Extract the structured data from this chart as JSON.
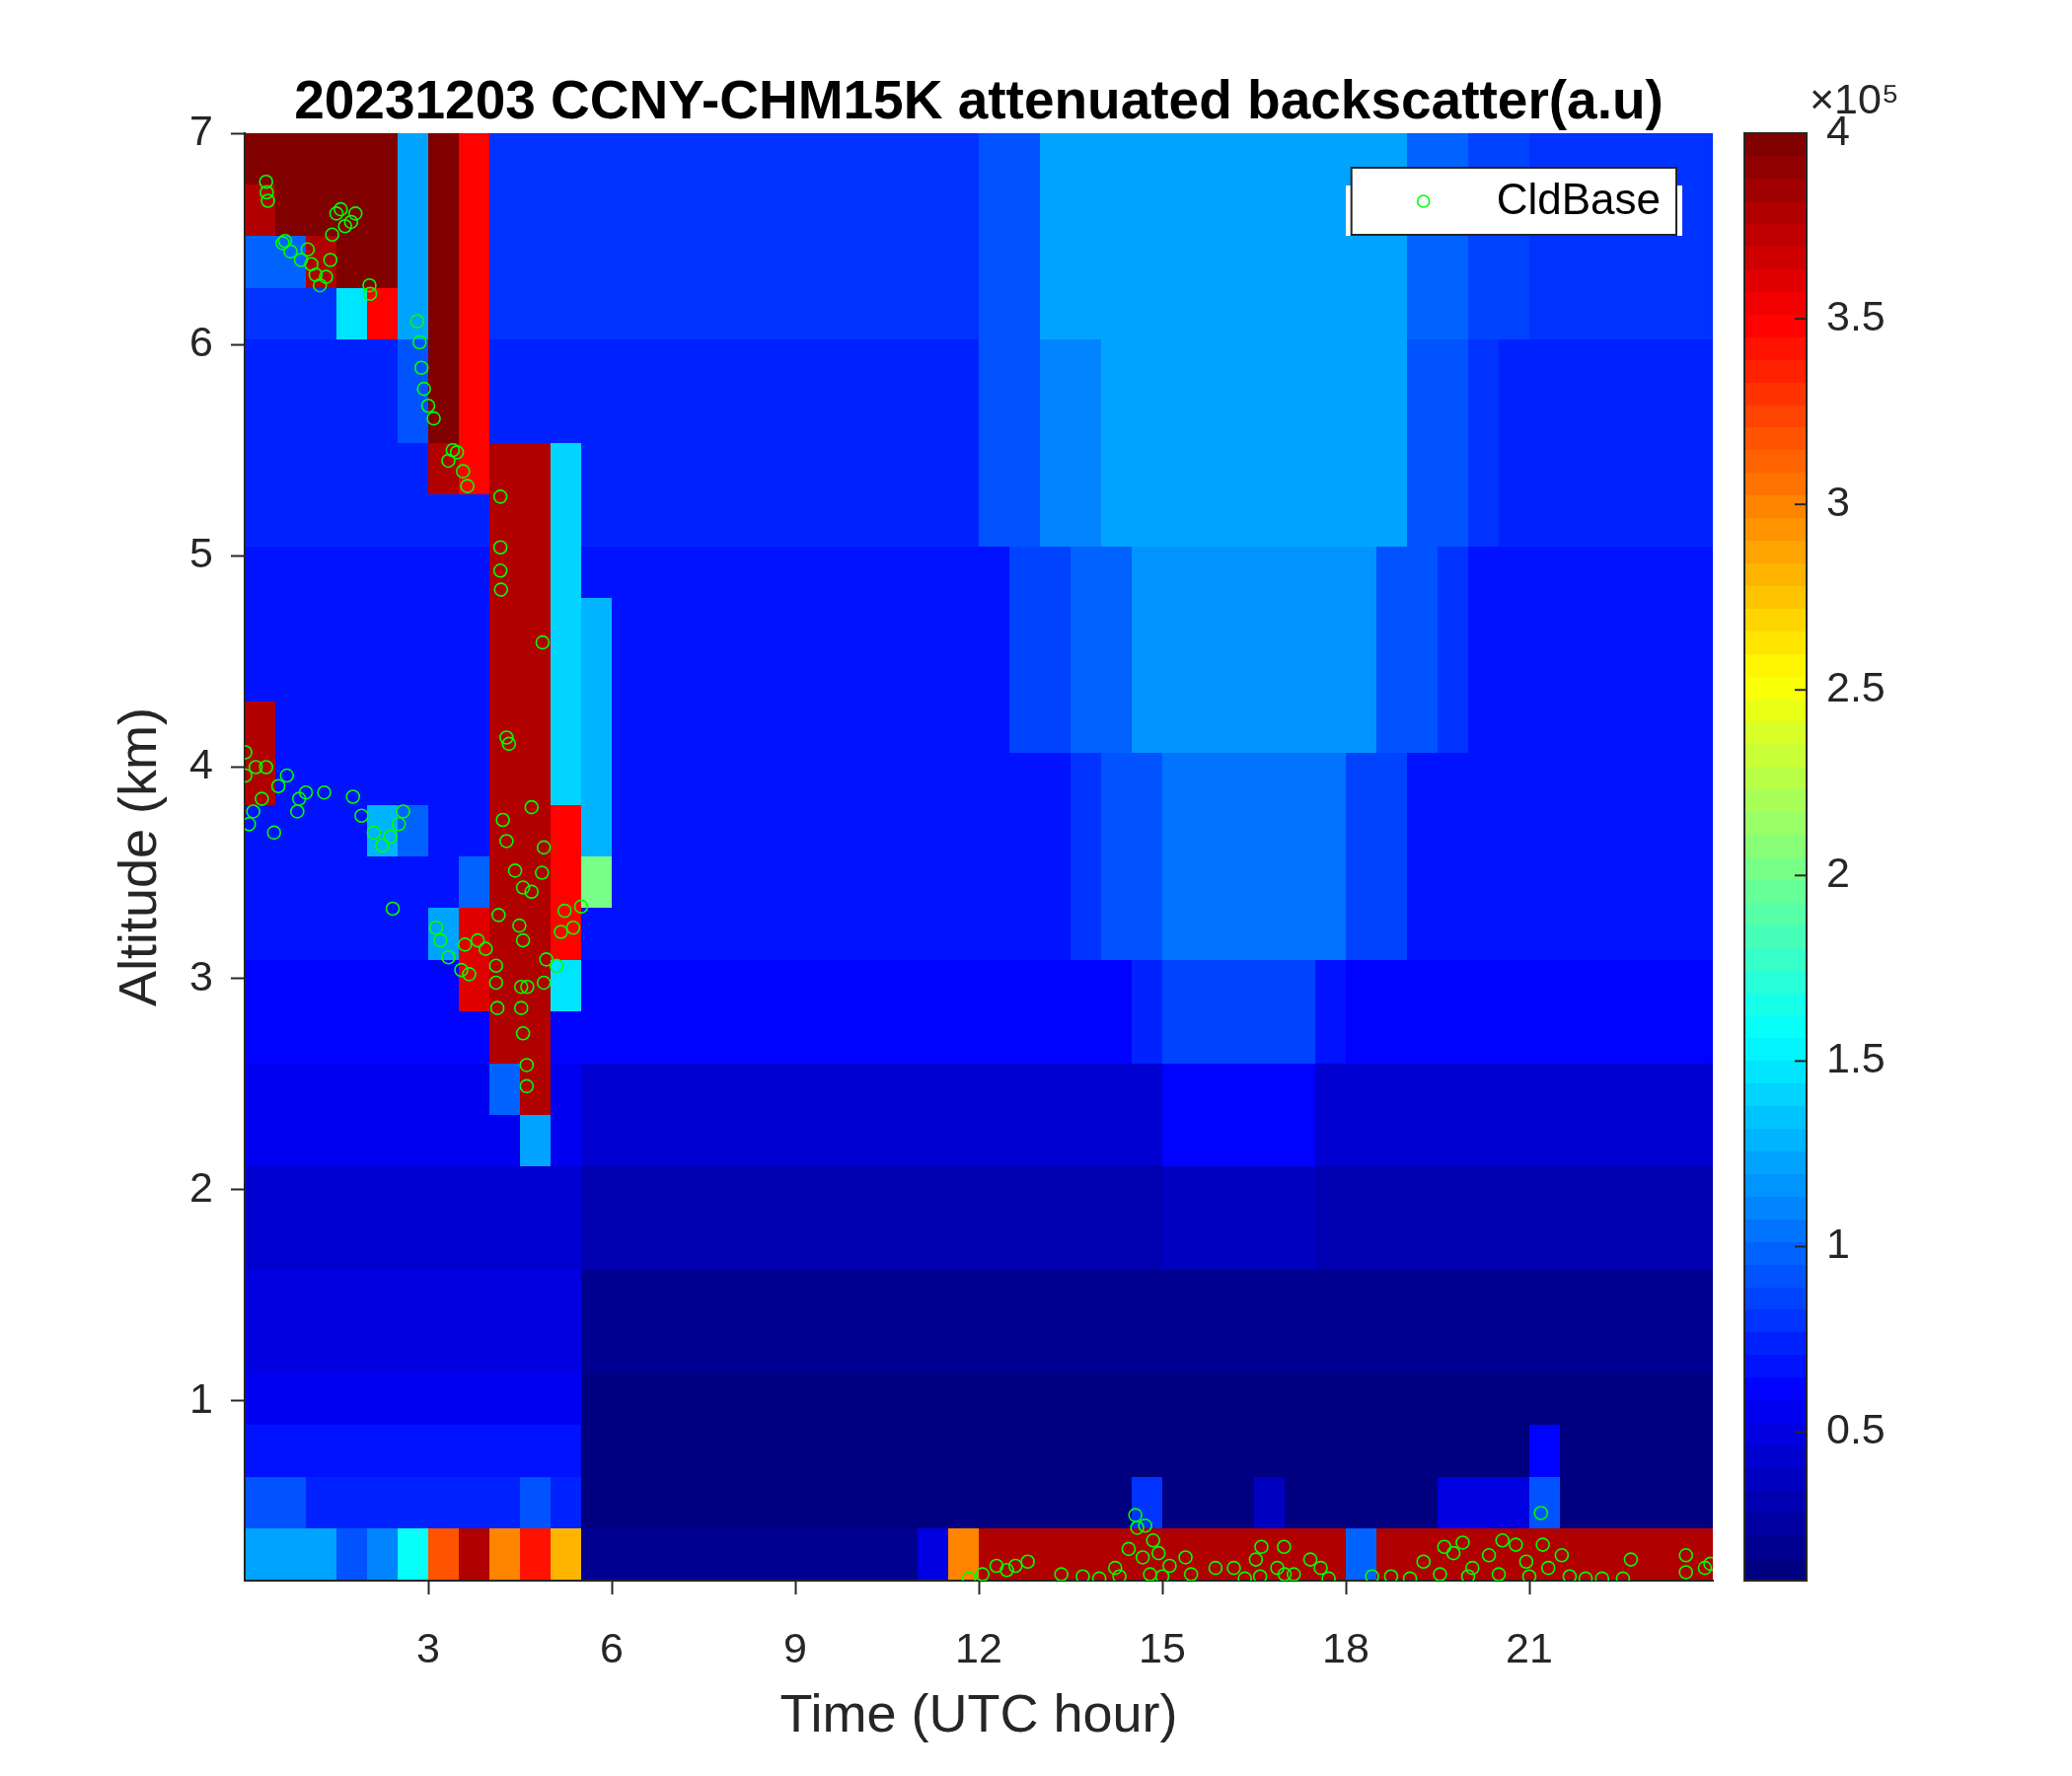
{
  "chart_data": {
    "type": "heatmap",
    "title": "20231203 CCNY-CHM15K attenuated backscatter(a.u)",
    "xlabel": "Time (UTC hour)",
    "ylabel": "Altitude (km)",
    "clabel": "×10⁵",
    "xlim": [
      0,
      24
    ],
    "xticks": [
      3,
      6,
      9,
      12,
      15,
      18,
      21
    ],
    "ylim": [
      0.15,
      7
    ],
    "yticks": [
      1,
      2,
      3,
      4,
      5,
      6,
      7
    ],
    "clim": [
      0.1,
      4
    ],
    "cticks": [
      0.5,
      1,
      1.5,
      2,
      2.5,
      3,
      3.5,
      4
    ],
    "legend": "top right",
    "marker": "circle",
    "cells": [
      [
        4,
        4,
        4,
        4,
        4,
        1.2,
        4,
        3.5,
        0.8,
        0.8,
        0.8,
        0.8,
        0.8,
        0.8,
        0.8,
        0.8,
        0.8,
        0.8,
        0.8,
        0.8,
        0.8,
        0.8,
        0.8,
        0.8,
        0.95,
        0.95,
        1.25,
        1.25,
        1.25,
        1.25,
        1.25,
        1.25,
        1.25,
        1.25,
        1.25,
        1.25,
        1.25,
        1.25,
        1.0,
        1.0,
        0.85,
        0.85,
        0.8,
        0.8,
        0.8,
        0.8,
        0.8,
        0.8
      ],
      [
        3.8,
        4,
        4,
        4,
        4,
        1.2,
        4,
        3.5,
        0.8,
        0.8,
        0.8,
        0.8,
        0.8,
        0.8,
        0.8,
        0.8,
        0.8,
        0.8,
        0.8,
        0.8,
        0.8,
        0.8,
        0.8,
        0.8,
        0.95,
        0.95,
        1.25,
        1.25,
        1.25,
        1.25,
        1.25,
        1.25,
        1.25,
        1.25,
        1.25,
        1.25,
        null,
        null,
        null,
        null,
        null,
        null,
        null,
        null,
        null,
        null,
        null,
        0.8
      ],
      [
        1.0,
        1.0,
        3.8,
        4,
        4,
        1.2,
        4,
        3.5,
        0.8,
        0.8,
        0.8,
        0.8,
        0.8,
        0.8,
        0.8,
        0.8,
        0.8,
        0.8,
        0.8,
        0.8,
        0.8,
        0.8,
        0.8,
        0.8,
        0.95,
        0.95,
        1.25,
        1.25,
        1.25,
        1.25,
        1.25,
        1.25,
        1.25,
        1.25,
        1.25,
        1.25,
        1.25,
        1.25,
        1.0,
        1.0,
        0.85,
        0.85,
        0.8,
        0.8,
        0.8,
        0.8,
        0.8,
        0.8
      ],
      [
        0.8,
        0.8,
        0.8,
        1.5,
        3.5,
        1.2,
        4,
        3.5,
        0.8,
        0.8,
        0.8,
        0.8,
        0.8,
        0.8,
        0.8,
        0.8,
        0.8,
        0.8,
        0.8,
        0.8,
        0.8,
        0.8,
        0.8,
        0.8,
        0.95,
        0.95,
        1.25,
        1.25,
        1.25,
        1.25,
        1.25,
        1.25,
        1.25,
        1.25,
        1.25,
        1.25,
        1.25,
        1.25,
        1.0,
        1.0,
        0.85,
        0.85,
        0.8,
        0.8,
        0.8,
        0.8,
        0.8,
        0.8
      ],
      [
        0.75,
        0.75,
        0.75,
        0.75,
        0.75,
        0.9,
        4,
        3.5,
        0.75,
        0.75,
        0.75,
        0.75,
        0.75,
        0.75,
        0.75,
        0.75,
        0.75,
        0.75,
        0.75,
        0.75,
        0.75,
        0.75,
        0.75,
        0.75,
        0.9,
        0.9,
        1.1,
        1.1,
        1.2,
        1.2,
        1.2,
        1.2,
        1.2,
        1.2,
        1.2,
        1.2,
        1.2,
        1.2,
        0.95,
        0.95,
        0.8,
        0.75,
        0.75,
        0.75,
        0.75,
        0.75,
        0.75,
        0.75
      ],
      [
        0.75,
        0.75,
        0.75,
        0.75,
        0.75,
        0.9,
        4,
        3.5,
        0.75,
        0.75,
        0.75,
        0.75,
        0.75,
        0.75,
        0.75,
        0.75,
        0.75,
        0.75,
        0.75,
        0.75,
        0.75,
        0.75,
        0.75,
        0.75,
        0.9,
        0.9,
        1.1,
        1.1,
        1.2,
        1.2,
        1.2,
        1.2,
        1.2,
        1.2,
        1.2,
        1.2,
        1.2,
        1.2,
        0.95,
        0.95,
        0.8,
        0.75,
        0.75,
        0.75,
        0.75,
        0.75,
        0.75,
        0.75
      ],
      [
        0.75,
        0.75,
        0.75,
        0.75,
        0.75,
        0.75,
        3.8,
        3.5,
        3.8,
        3.8,
        1.4,
        0.75,
        0.75,
        0.75,
        0.75,
        0.75,
        0.75,
        0.75,
        0.75,
        0.75,
        0.75,
        0.75,
        0.75,
        0.75,
        0.9,
        0.9,
        1.1,
        1.1,
        1.2,
        1.2,
        1.2,
        1.2,
        1.2,
        1.2,
        1.2,
        1.2,
        1.2,
        1.2,
        0.95,
        0.95,
        0.8,
        0.75,
        0.75,
        0.75,
        0.75,
        0.75,
        0.75,
        0.75
      ],
      [
        0.75,
        0.75,
        0.75,
        0.75,
        0.75,
        0.75,
        0.75,
        0.75,
        3.8,
        3.8,
        1.4,
        0.75,
        0.75,
        0.75,
        0.75,
        0.75,
        0.75,
        0.75,
        0.75,
        0.75,
        0.75,
        0.75,
        0.75,
        0.75,
        0.9,
        0.9,
        1.1,
        1.1,
        1.2,
        1.2,
        1.2,
        1.2,
        1.2,
        1.2,
        1.2,
        1.2,
        1.2,
        1.2,
        0.95,
        0.95,
        0.8,
        0.75,
        0.75,
        0.75,
        0.75,
        0.75,
        0.75,
        0.75
      ],
      [
        0.7,
        0.7,
        0.7,
        0.7,
        0.7,
        0.7,
        0.7,
        0.7,
        3.8,
        3.8,
        1.4,
        0.7,
        0.7,
        0.7,
        0.7,
        0.7,
        0.7,
        0.7,
        0.7,
        0.7,
        0.7,
        0.7,
        0.7,
        0.7,
        0.7,
        0.85,
        0.85,
        1.0,
        1.0,
        1.15,
        1.15,
        1.15,
        1.15,
        1.15,
        1.15,
        1.15,
        1.15,
        0.95,
        0.95,
        0.8,
        0.7,
        0.7,
        0.7,
        0.7,
        0.7,
        0.7,
        0.7,
        0.7
      ],
      [
        0.7,
        0.7,
        0.7,
        0.7,
        0.7,
        0.7,
        0.7,
        0.7,
        3.8,
        3.8,
        1.4,
        1.3,
        0.7,
        0.7,
        0.7,
        0.7,
        0.7,
        0.7,
        0.7,
        0.7,
        0.7,
        0.7,
        0.7,
        0.7,
        0.7,
        0.85,
        0.85,
        1.0,
        1.0,
        1.15,
        1.15,
        1.15,
        1.15,
        1.15,
        1.15,
        1.15,
        1.15,
        0.95,
        0.95,
        0.8,
        0.7,
        0.7,
        0.7,
        0.7,
        0.7,
        0.7,
        0.7,
        0.7
      ],
      [
        0.7,
        0.7,
        0.7,
        0.7,
        0.7,
        0.7,
        0.7,
        0.7,
        3.8,
        3.8,
        1.4,
        1.3,
        0.7,
        0.7,
        0.7,
        0.7,
        0.7,
        0.7,
        0.7,
        0.7,
        0.7,
        0.7,
        0.7,
        0.7,
        0.7,
        0.85,
        0.85,
        1.0,
        1.0,
        1.15,
        1.15,
        1.15,
        1.15,
        1.15,
        1.15,
        1.15,
        1.15,
        0.95,
        0.95,
        0.8,
        0.7,
        0.7,
        0.7,
        0.7,
        0.7,
        0.7,
        0.7,
        0.7
      ],
      [
        3.8,
        0.7,
        0.7,
        0.7,
        0.7,
        0.7,
        0.7,
        0.7,
        3.8,
        3.8,
        1.4,
        1.3,
        0.7,
        0.7,
        0.7,
        0.7,
        0.7,
        0.7,
        0.7,
        0.7,
        0.7,
        0.7,
        0.7,
        0.7,
        0.7,
        0.85,
        0.85,
        1.0,
        1.0,
        1.15,
        1.15,
        1.15,
        1.15,
        1.15,
        1.15,
        1.15,
        1.15,
        0.95,
        0.95,
        0.8,
        0.7,
        0.7,
        0.7,
        0.7,
        0.7,
        0.7,
        0.7,
        0.7
      ],
      [
        3.8,
        0.65,
        0.65,
        0.65,
        0.65,
        0.65,
        0.65,
        0.65,
        3.8,
        3.8,
        1.4,
        1.3,
        0.65,
        0.65,
        0.65,
        0.65,
        0.65,
        0.65,
        0.65,
        0.65,
        0.65,
        0.65,
        0.65,
        0.65,
        0.65,
        0.65,
        0.65,
        0.8,
        0.95,
        0.95,
        1.05,
        1.05,
        1.05,
        1.05,
        1.05,
        1.05,
        0.85,
        0.85,
        0.65,
        0.65,
        0.65,
        0.65,
        0.65,
        0.65,
        0.65,
        0.65,
        0.65,
        0.65
      ],
      [
        0.65,
        0.65,
        0.65,
        0.65,
        1.3,
        1.0,
        0.65,
        0.65,
        3.8,
        3.8,
        3.5,
        1.3,
        0.65,
        0.65,
        0.65,
        0.65,
        0.65,
        0.65,
        0.65,
        0.65,
        0.65,
        0.65,
        0.65,
        0.65,
        0.65,
        0.65,
        0.65,
        0.8,
        0.95,
        0.95,
        1.05,
        1.05,
        1.05,
        1.05,
        1.05,
        1.05,
        0.85,
        0.85,
        0.65,
        0.65,
        0.65,
        0.65,
        0.65,
        0.65,
        0.65,
        0.65,
        0.65,
        0.65
      ],
      [
        0.65,
        0.65,
        0.65,
        0.65,
        0.65,
        0.65,
        0.65,
        1.0,
        3.8,
        3.8,
        3.5,
        2.0,
        0.65,
        0.65,
        0.65,
        0.65,
        0.65,
        0.65,
        0.65,
        0.65,
        0.65,
        0.65,
        0.65,
        0.65,
        0.65,
        0.65,
        0.65,
        0.8,
        0.95,
        0.95,
        1.05,
        1.05,
        1.05,
        1.05,
        1.05,
        1.05,
        0.85,
        0.85,
        0.65,
        0.65,
        0.65,
        0.65,
        0.65,
        0.65,
        0.65,
        0.65,
        0.65,
        0.65
      ],
      [
        0.65,
        0.65,
        0.65,
        0.65,
        0.65,
        0.65,
        1.2,
        3.6,
        3.8,
        3.8,
        3.5,
        0.65,
        0.65,
        0.65,
        0.65,
        0.65,
        0.65,
        0.65,
        0.65,
        0.65,
        0.65,
        0.65,
        0.65,
        0.65,
        0.65,
        0.65,
        0.65,
        0.8,
        0.95,
        0.95,
        1.05,
        1.05,
        1.05,
        1.05,
        1.05,
        1.05,
        0.85,
        0.85,
        0.65,
        0.65,
        0.65,
        0.65,
        0.65,
        0.65,
        0.65,
        0.65,
        0.65,
        0.65
      ],
      [
        0.6,
        0.6,
        0.6,
        0.6,
        0.6,
        0.6,
        0.6,
        3.6,
        3.8,
        3.8,
        1.5,
        0.6,
        0.6,
        0.6,
        0.6,
        0.6,
        0.6,
        0.6,
        0.6,
        0.6,
        0.6,
        0.6,
        0.6,
        0.6,
        0.6,
        0.6,
        0.6,
        0.6,
        0.6,
        0.75,
        0.85,
        0.85,
        0.85,
        0.85,
        0.85,
        0.7,
        0.6,
        0.6,
        0.6,
        0.6,
        0.6,
        0.6,
        0.6,
        0.6,
        0.6,
        0.6,
        0.6,
        0.6
      ],
      [
        0.6,
        0.6,
        0.6,
        0.6,
        0.6,
        0.6,
        0.6,
        0.6,
        3.8,
        3.8,
        0.6,
        0.6,
        0.6,
        0.6,
        0.6,
        0.6,
        0.6,
        0.6,
        0.6,
        0.6,
        0.6,
        0.6,
        0.6,
        0.6,
        0.6,
        0.6,
        0.6,
        0.6,
        0.6,
        0.75,
        0.85,
        0.85,
        0.85,
        0.85,
        0.85,
        0.7,
        0.6,
        0.6,
        0.6,
        0.6,
        0.6,
        0.6,
        0.6,
        0.6,
        0.6,
        0.6,
        0.6,
        0.6
      ],
      [
        0.55,
        0.55,
        0.55,
        0.55,
        0.55,
        0.55,
        0.55,
        0.55,
        1.0,
        3.8,
        0.55,
        0.45,
        0.45,
        0.45,
        0.45,
        0.45,
        0.45,
        0.45,
        0.45,
        0.45,
        0.45,
        0.45,
        0.45,
        0.45,
        0.45,
        0.45,
        0.45,
        0.45,
        0.45,
        0.45,
        0.6,
        0.6,
        0.6,
        0.6,
        0.6,
        0.45,
        0.45,
        0.45,
        0.45,
        0.45,
        0.45,
        0.45,
        0.45,
        0.45,
        0.45,
        0.45,
        0.45,
        0.45
      ],
      [
        0.55,
        0.55,
        0.55,
        0.55,
        0.55,
        0.55,
        0.55,
        0.55,
        0.55,
        1.2,
        0.55,
        0.45,
        0.45,
        0.45,
        0.45,
        0.45,
        0.45,
        0.45,
        0.45,
        0.45,
        0.45,
        0.45,
        0.45,
        0.45,
        0.45,
        0.45,
        0.45,
        0.45,
        0.45,
        0.45,
        0.6,
        0.6,
        0.6,
        0.6,
        0.6,
        0.45,
        0.45,
        0.45,
        0.45,
        0.45,
        0.45,
        0.45,
        0.45,
        0.45,
        0.45,
        0.45,
        0.45,
        0.45
      ],
      [
        0.45,
        0.45,
        0.45,
        0.45,
        0.45,
        0.45,
        0.45,
        0.45,
        0.45,
        0.45,
        0.45,
        0.3,
        0.3,
        0.3,
        0.3,
        0.3,
        0.3,
        0.3,
        0.3,
        0.3,
        0.3,
        0.3,
        0.3,
        0.3,
        0.3,
        0.3,
        0.3,
        0.3,
        0.3,
        0.3,
        0.4,
        0.4,
        0.4,
        0.4,
        0.4,
        0.3,
        0.3,
        0.3,
        0.3,
        0.3,
        0.3,
        0.3,
        0.3,
        0.3,
        0.3,
        0.3,
        0.3,
        0.3
      ],
      [
        0.45,
        0.45,
        0.45,
        0.45,
        0.45,
        0.45,
        0.45,
        0.45,
        0.45,
        0.45,
        0.45,
        0.3,
        0.3,
        0.3,
        0.3,
        0.3,
        0.3,
        0.3,
        0.3,
        0.3,
        0.3,
        0.3,
        0.3,
        0.3,
        0.3,
        0.3,
        0.3,
        0.3,
        0.3,
        0.3,
        0.4,
        0.4,
        0.4,
        0.4,
        0.4,
        0.3,
        0.3,
        0.3,
        0.3,
        0.3,
        0.3,
        0.3,
        0.3,
        0.3,
        0.3,
        0.3,
        0.3,
        0.3
      ],
      [
        0.5,
        0.5,
        0.5,
        0.5,
        0.5,
        0.5,
        0.5,
        0.5,
        0.5,
        0.5,
        0.5,
        0.2,
        0.2,
        0.2,
        0.2,
        0.2,
        0.2,
        0.2,
        0.2,
        0.2,
        0.2,
        0.2,
        0.2,
        0.2,
        0.2,
        0.2,
        0.2,
        0.2,
        0.2,
        0.2,
        0.2,
        0.2,
        0.2,
        0.2,
        0.2,
        0.2,
        0.2,
        0.2,
        0.2,
        0.2,
        0.2,
        0.2,
        0.2,
        0.2,
        0.2,
        0.2,
        0.2,
        0.2
      ],
      [
        0.5,
        0.5,
        0.5,
        0.5,
        0.5,
        0.5,
        0.5,
        0.5,
        0.5,
        0.5,
        0.5,
        0.2,
        0.2,
        0.2,
        0.2,
        0.2,
        0.2,
        0.2,
        0.2,
        0.2,
        0.2,
        0.2,
        0.2,
        0.2,
        0.2,
        0.2,
        0.2,
        0.2,
        0.2,
        0.2,
        0.2,
        0.2,
        0.2,
        0.2,
        0.2,
        0.2,
        0.2,
        0.2,
        0.2,
        0.2,
        0.2,
        0.2,
        0.2,
        0.2,
        0.2,
        0.2,
        0.2,
        0.2
      ],
      [
        0.55,
        0.55,
        0.55,
        0.55,
        0.55,
        0.55,
        0.55,
        0.55,
        0.55,
        0.55,
        0.55,
        0.15,
        0.15,
        0.15,
        0.15,
        0.15,
        0.15,
        0.15,
        0.15,
        0.15,
        0.15,
        0.15,
        0.15,
        0.15,
        0.15,
        0.15,
        0.15,
        0.15,
        0.15,
        0.15,
        0.15,
        0.15,
        0.15,
        0.15,
        0.15,
        0.15,
        0.15,
        0.15,
        0.15,
        0.15,
        0.15,
        0.15,
        0.15,
        0.15,
        0.15,
        0.15,
        0.15,
        0.15
      ],
      [
        0.65,
        0.65,
        0.65,
        0.65,
        0.65,
        0.65,
        0.65,
        0.65,
        0.65,
        0.65,
        0.65,
        0.15,
        0.15,
        0.15,
        0.15,
        0.15,
        0.15,
        0.15,
        0.15,
        0.15,
        0.15,
        0.15,
        0.15,
        0.15,
        0.15,
        0.15,
        0.15,
        0.15,
        0.15,
        0.15,
        0.15,
        0.15,
        0.15,
        0.15,
        0.15,
        0.15,
        0.15,
        0.15,
        0.15,
        0.15,
        0.15,
        0.15,
        0.6,
        0.15,
        0.15,
        0.15,
        0.15,
        0.15
      ],
      [
        0.9,
        0.9,
        0.75,
        0.75,
        0.75,
        0.75,
        0.75,
        0.75,
        0.75,
        0.9,
        0.75,
        0.15,
        0.15,
        0.15,
        0.15,
        0.15,
        0.15,
        0.15,
        0.15,
        0.15,
        0.15,
        0.15,
        0.15,
        0.15,
        0.15,
        0.15,
        0.15,
        0.15,
        0.15,
        0.8,
        0.15,
        0.15,
        0.15,
        0.4,
        0.15,
        0.15,
        0.15,
        0.15,
        0.15,
        0.5,
        0.5,
        0.5,
        0.9,
        0.15,
        0.15,
        0.15,
        0.15,
        0.15
      ],
      [
        1.2,
        1.2,
        1.2,
        0.9,
        1.1,
        1.6,
        3.2,
        3.8,
        3.0,
        3.4,
        2.8,
        0.2,
        0.2,
        0.2,
        0.2,
        0.2,
        0.2,
        0.2,
        0.2,
        0.2,
        0.2,
        0.2,
        0.5,
        3.0,
        3.8,
        3.8,
        3.8,
        3.8,
        3.8,
        3.8,
        3.8,
        3.8,
        3.8,
        3.8,
        3.8,
        3.8,
        1.0,
        3.8,
        3.8,
        3.8,
        3.8,
        3.8,
        3.8,
        3.8,
        3.8,
        3.8,
        3.8,
        3.8
      ]
    ],
    "series": [
      {
        "type": "scatter",
        "name": "CldBase",
        "color": "#00ff00",
        "x": [
          0.35,
          0.36,
          0.38,
          0.62,
          0.66,
          0.75,
          0.92,
          1.03,
          1.09,
          1.16,
          1.23,
          1.33,
          1.4,
          1.43,
          1.5,
          1.57,
          1.64,
          1.74,
          1.81,
          2.04,
          2.05,
          2.82,
          2.86,
          2.89,
          2.93,
          3.0,
          3.09,
          3.33,
          3.4,
          3.47,
          3.57,
          3.64,
          4.18,
          4.18,
          4.18,
          4.19,
          4.87,
          4.28,
          4.32,
          0.01,
          0.01,
          0.18,
          0.35,
          0.07,
          0.14,
          0.28,
          0.48,
          0.55,
          0.69,
          0.89,
          1.0,
          0.86,
          1.3,
          1.77,
          1.91,
          2.11,
          2.25,
          2.38,
          2.52,
          2.59,
          2.42,
          3.13,
          3.2,
          3.33,
          3.54,
          3.67,
          3.6,
          3.81,
          3.94,
          4.11,
          4.11,
          4.13,
          4.15,
          4.22,
          4.28,
          4.42,
          4.55,
          4.69,
          4.69,
          4.89,
          4.86,
          4.49,
          4.55,
          4.52,
          4.52,
          4.55,
          4.61,
          4.61,
          4.62,
          4.89,
          4.93,
          5.1,
          5.17,
          5.23,
          5.37,
          5.5,
          11.84,
          12.06,
          12.29,
          12.46,
          12.6,
          12.8,
          13.35,
          13.7,
          13.97,
          14.23,
          14.3,
          14.45,
          14.56,
          14.59,
          14.72,
          14.85,
          14.68,
          14.8,
          14.94,
          15.0,
          15.12,
          15.38,
          15.47,
          15.87,
          16.17,
          16.35,
          16.53,
          16.6,
          16.62,
          16.88,
          16.99,
          17.0,
          17.15,
          17.42,
          17.59,
          17.72,
          18.43,
          18.74,
          19.05,
          19.27,
          19.54,
          19.61,
          19.76,
          19.91,
          20.0,
          20.07,
          20.34,
          20.5,
          20.56,
          20.78,
          20.95,
          21.0,
          21.19,
          21.22,
          21.31,
          21.53,
          21.66,
          21.92,
          22.19,
          22.53,
          22.66,
          23.56,
          23.56,
          23.87,
          23.96
        ],
        "values": [
          6.77,
          6.72,
          6.68,
          6.48,
          6.49,
          6.44,
          6.4,
          6.45,
          6.38,
          6.33,
          6.28,
          6.32,
          6.4,
          6.52,
          6.62,
          6.64,
          6.56,
          6.58,
          6.62,
          6.28,
          6.24,
          6.11,
          6.01,
          5.89,
          5.79,
          5.71,
          5.65,
          5.45,
          5.5,
          5.49,
          5.4,
          5.33,
          5.28,
          5.04,
          4.93,
          4.84,
          4.59,
          4.14,
          4.11,
          4.07,
          3.96,
          4.0,
          4.0,
          3.73,
          3.79,
          3.85,
          3.69,
          3.91,
          3.96,
          3.85,
          3.88,
          3.79,
          3.88,
          3.86,
          3.77,
          3.69,
          3.63,
          3.67,
          3.73,
          3.79,
          3.33,
          3.24,
          3.18,
          3.1,
          3.04,
          3.02,
          3.16,
          3.18,
          3.14,
          3.06,
          2.98,
          2.86,
          3.3,
          3.75,
          3.65,
          3.51,
          3.43,
          3.41,
          3.81,
          3.62,
          3.5,
          3.25,
          3.18,
          2.96,
          2.86,
          2.74,
          2.59,
          2.49,
          2.96,
          2.98,
          3.09,
          3.06,
          3.22,
          3.32,
          3.24,
          3.34,
          0.16,
          0.18,
          0.22,
          0.2,
          0.22,
          0.24,
          0.18,
          0.17,
          0.16,
          0.21,
          0.17,
          0.3,
          0.46,
          0.4,
          0.41,
          0.34,
          0.26,
          0.18,
          0.28,
          0.17,
          0.22,
          0.26,
          0.18,
          0.21,
          0.21,
          0.16,
          0.25,
          0.17,
          0.31,
          0.21,
          0.31,
          0.18,
          0.18,
          0.25,
          0.21,
          0.16,
          0.17,
          0.17,
          0.16,
          0.24,
          0.18,
          0.31,
          0.28,
          0.33,
          0.17,
          0.21,
          0.27,
          0.18,
          0.34,
          0.32,
          0.24,
          0.17,
          0.47,
          0.32,
          0.21,
          0.27,
          0.17,
          0.16,
          0.16,
          0.16,
          0.25,
          0.27,
          0.19,
          0.21,
          0.23
        ]
      }
    ]
  }
}
